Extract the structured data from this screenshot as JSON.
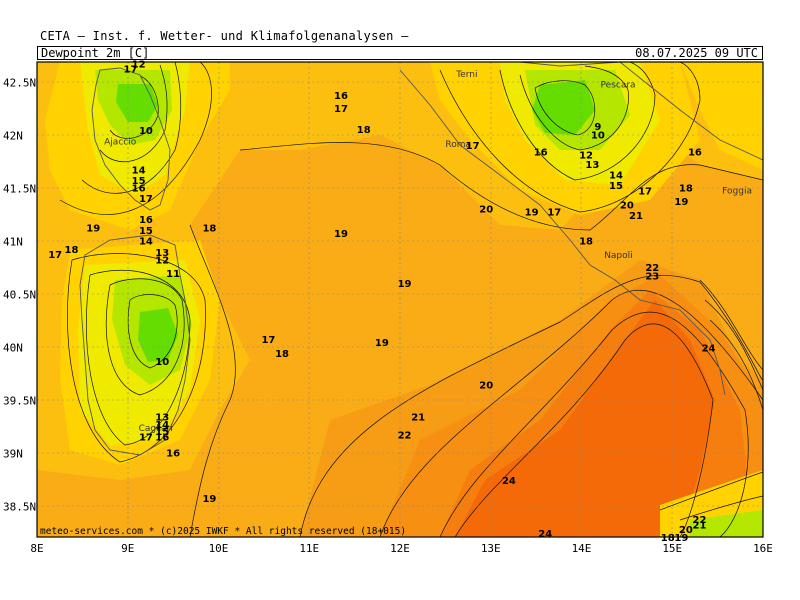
{
  "header": {
    "title": "CETA — Inst. f. Wetter- und Klimafolgenanalysen —",
    "parameter": "Dewpoint_2m [C]",
    "valid_time": "08.07.2025 09 UTC"
  },
  "footer": {
    "copyright": "meteo-services.com * (c)2025 IWKF * All rights reserved (18+015)"
  },
  "axes": {
    "x_ticks": [
      "8E",
      "9E",
      "10E",
      "11E",
      "12E",
      "13E",
      "14E",
      "15E",
      "16E"
    ],
    "y_ticks": [
      "42.5N",
      "42N",
      "41.5N",
      "41N",
      "40.5N",
      "40N",
      "39.5N",
      "39N",
      "38.5N"
    ]
  },
  "colors": {
    "c9": "#66dd00",
    "c12": "#b4e600",
    "c15": "#f0ea00",
    "c17": "#ffd200",
    "c18": "#fcbf10",
    "c19": "#f9ac15",
    "c20": "#f79d15",
    "c21": "#f68f12",
    "c22": "#f57e0e",
    "c24": "#f56a08"
  },
  "map": {
    "cities": [
      {
        "name": "Terni",
        "lon": 12.62,
        "lat": 42.56
      },
      {
        "name": "Pescara",
        "lon": 14.21,
        "lat": 42.46
      },
      {
        "name": "Ajaccio",
        "lon": 8.74,
        "lat": 41.92
      },
      {
        "name": "Roma",
        "lon": 12.5,
        "lat": 41.9
      },
      {
        "name": "Foggia",
        "lon": 15.55,
        "lat": 41.46
      },
      {
        "name": "Napoli",
        "lon": 14.25,
        "lat": 40.85
      },
      {
        "name": "Cagliari",
        "lon": 9.12,
        "lat": 39.22
      }
    ],
    "contour_labels": [
      {
        "text": "12",
        "lon": 9.12,
        "lat": 42.65
      },
      {
        "text": "17",
        "lon": 9.03,
        "lat": 42.6
      },
      {
        "text": "10",
        "lon": 9.2,
        "lat": 42.02
      },
      {
        "text": "14",
        "lon": 9.12,
        "lat": 41.65
      },
      {
        "text": "15",
        "lon": 9.12,
        "lat": 41.55
      },
      {
        "text": "16",
        "lon": 9.12,
        "lat": 41.48
      },
      {
        "text": "17",
        "lon": 9.2,
        "lat": 41.38
      },
      {
        "text": "16",
        "lon": 9.2,
        "lat": 41.18
      },
      {
        "text": "15",
        "lon": 9.2,
        "lat": 41.08
      },
      {
        "text": "14",
        "lon": 9.2,
        "lat": 40.98
      },
      {
        "text": "19",
        "lon": 8.62,
        "lat": 41.1
      },
      {
        "text": "18",
        "lon": 8.38,
        "lat": 40.9
      },
      {
        "text": "17",
        "lon": 8.2,
        "lat": 40.85
      },
      {
        "text": "18",
        "lon": 9.9,
        "lat": 41.1
      },
      {
        "text": "13",
        "lon": 9.38,
        "lat": 40.87
      },
      {
        "text": "12",
        "lon": 9.38,
        "lat": 40.8
      },
      {
        "text": "11",
        "lon": 9.5,
        "lat": 40.67
      },
      {
        "text": "10",
        "lon": 9.38,
        "lat": 39.84
      },
      {
        "text": "13",
        "lon": 9.38,
        "lat": 39.32
      },
      {
        "text": "14",
        "lon": 9.38,
        "lat": 39.25
      },
      {
        "text": "15",
        "lon": 9.38,
        "lat": 39.18
      },
      {
        "text": "16",
        "lon": 9.38,
        "lat": 39.13
      },
      {
        "text": "17",
        "lon": 9.2,
        "lat": 39.13
      },
      {
        "text": "16",
        "lon": 9.5,
        "lat": 38.98
      },
      {
        "text": "19",
        "lon": 9.9,
        "lat": 38.55
      },
      {
        "text": "16",
        "lon": 11.35,
        "lat": 42.35
      },
      {
        "text": "17",
        "lon": 11.35,
        "lat": 42.23
      },
      {
        "text": "18",
        "lon": 11.6,
        "lat": 42.03
      },
      {
        "text": "17",
        "lon": 12.8,
        "lat": 41.88
      },
      {
        "text": "16",
        "lon": 13.55,
        "lat": 41.82
      },
      {
        "text": "12",
        "lon": 14.05,
        "lat": 41.79
      },
      {
        "text": "13",
        "lon": 14.12,
        "lat": 41.7
      },
      {
        "text": "14",
        "lon": 14.38,
        "lat": 41.6
      },
      {
        "text": "15",
        "lon": 14.38,
        "lat": 41.5
      },
      {
        "text": "17",
        "lon": 14.7,
        "lat": 41.45
      },
      {
        "text": "9",
        "lon": 14.18,
        "lat": 42.06
      },
      {
        "text": "10",
        "lon": 14.18,
        "lat": 41.98
      },
      {
        "text": "16",
        "lon": 15.25,
        "lat": 41.82
      },
      {
        "text": "18",
        "lon": 15.15,
        "lat": 41.48
      },
      {
        "text": "19",
        "lon": 15.1,
        "lat": 41.35
      },
      {
        "text": "20",
        "lon": 14.5,
        "lat": 41.32
      },
      {
        "text": "21",
        "lon": 14.6,
        "lat": 41.22
      },
      {
        "text": "20",
        "lon": 12.95,
        "lat": 41.28
      },
      {
        "text": "19",
        "lon": 13.45,
        "lat": 41.25
      },
      {
        "text": "17",
        "lon": 13.7,
        "lat": 41.25
      },
      {
        "text": "19",
        "lon": 11.35,
        "lat": 41.05
      },
      {
        "text": "18",
        "lon": 14.05,
        "lat": 40.98
      },
      {
        "text": "19",
        "lon": 12.05,
        "lat": 40.58
      },
      {
        "text": "22",
        "lon": 14.78,
        "lat": 40.73
      },
      {
        "text": "23",
        "lon": 14.78,
        "lat": 40.65
      },
      {
        "text": "17",
        "lon": 10.55,
        "lat": 40.05
      },
      {
        "text": "18",
        "lon": 10.7,
        "lat": 39.92
      },
      {
        "text": "19",
        "lon": 11.8,
        "lat": 40.02
      },
      {
        "text": "20",
        "lon": 12.95,
        "lat": 39.62
      },
      {
        "text": "21",
        "lon": 12.2,
        "lat": 39.32
      },
      {
        "text": "22",
        "lon": 12.05,
        "lat": 39.15
      },
      {
        "text": "24",
        "lon": 13.2,
        "lat": 38.72
      },
      {
        "text": "24",
        "lon": 15.4,
        "lat": 39.97
      },
      {
        "text": "24",
        "lon": 13.6,
        "lat": 38.22
      },
      {
        "text": "22",
        "lon": 15.3,
        "lat": 38.35
      },
      {
        "text": "21",
        "lon": 15.3,
        "lat": 38.3
      },
      {
        "text": "20",
        "lon": 15.15,
        "lat": 38.26
      },
      {
        "text": "19",
        "lon": 15.1,
        "lat": 38.18
      },
      {
        "text": "18",
        "lon": 14.95,
        "lat": 38.18
      }
    ]
  }
}
